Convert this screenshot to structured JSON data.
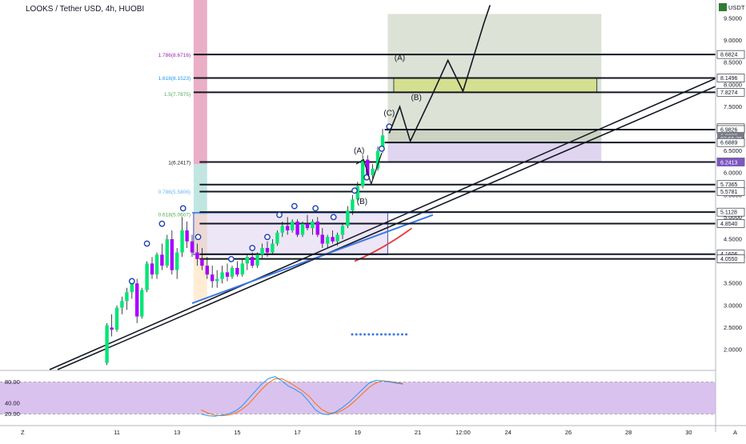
{
  "header": {
    "title": "LOOKS / Tether USD, 4h, HUOBI"
  },
  "price_axis": {
    "currency": "USDT",
    "ticks": [
      "9.5000",
      "9.0000",
      "8.5000",
      "8.0000",
      "7.5000",
      "7.0000",
      "6.5000",
      "6.0000",
      "5.5000",
      "5.0000",
      "4.5000",
      "4.0000",
      "3.5000",
      "3.0000",
      "2.5000",
      "2.0000"
    ],
    "tags": [
      {
        "label": "8.6824",
        "price": 8.6824,
        "bg": "#ffffff",
        "fg": "#131722"
      },
      {
        "label": "8.1496",
        "price": 8.1496,
        "bg": "#ffffff",
        "fg": "#131722"
      },
      {
        "label": "7.8274",
        "price": 7.8274,
        "bg": "#ffffff",
        "fg": "#131722"
      },
      {
        "label": "7.0220",
        "price": 7.022,
        "bg": "#ffffff",
        "fg": "#131722"
      },
      {
        "label": "6.9826",
        "price": 6.9826,
        "bg": "#ffffff",
        "fg": "#131722"
      },
      {
        "label": "6.8380",
        "price": 6.838,
        "bg": "#787b86",
        "fg": "#ffffff"
      },
      {
        "label": "02:55:35",
        "price": 6.77,
        "bg": "#787b86",
        "fg": "#ffffff"
      },
      {
        "label": "6.6889",
        "price": 6.6889,
        "bg": "#ffffff",
        "fg": "#131722"
      },
      {
        "label": "6.2492",
        "price": 6.2492,
        "bg": "#ffffff",
        "fg": "#131722"
      },
      {
        "label": "6.2413",
        "price": 6.2413,
        "bg": "#7e57c2",
        "fg": "#ffffff"
      },
      {
        "label": "5.7365",
        "price": 5.7365,
        "bg": "#ffffff",
        "fg": "#131722"
      },
      {
        "label": "5.5781",
        "price": 5.5781,
        "bg": "#ffffff",
        "fg": "#131722"
      },
      {
        "label": "5.1128",
        "price": 5.1128,
        "bg": "#ffffff",
        "fg": "#131722"
      },
      {
        "label": "4.8540",
        "price": 4.854,
        "bg": "#ffffff",
        "fg": "#131722"
      },
      {
        "label": "4.1606",
        "price": 4.1606,
        "bg": "#ffffff",
        "fg": "#131722"
      },
      {
        "label": "4.0550",
        "price": 4.055,
        "bg": "#ffffff",
        "fg": "#131722"
      }
    ]
  },
  "time_axis": {
    "ticks": [
      {
        "label": "11",
        "t": 11
      },
      {
        "label": "13",
        "t": 13
      },
      {
        "label": "15",
        "t": 15
      },
      {
        "label": "17",
        "t": 17
      },
      {
        "label": "19",
        "t": 19
      },
      {
        "label": "21",
        "t": 21
      },
      {
        "label": "12:00",
        "t": 22.5
      },
      {
        "label": "24",
        "t": 24
      },
      {
        "label": "26",
        "t": 26
      },
      {
        "label": "28",
        "t": 28
      },
      {
        "label": "30",
        "t": 30
      }
    ],
    "left_corner": "Z",
    "right_corner": "A"
  },
  "oscillator": {
    "ticks": [
      "80.00",
      "40.00",
      "20.00"
    ],
    "k_values": [
      20,
      17,
      16,
      18,
      20,
      25,
      34,
      48,
      62,
      76,
      86,
      90,
      82,
      72,
      66,
      58,
      44,
      28,
      20,
      19,
      24,
      32,
      42,
      54,
      66,
      78,
      83,
      82,
      80,
      78,
      76
    ],
    "d_values": [
      28,
      22,
      18,
      17,
      18,
      21,
      28,
      38,
      52,
      66,
      78,
      86,
      86,
      80,
      72,
      64,
      54,
      40,
      28,
      22,
      22,
      27,
      35,
      46,
      58,
      70,
      78,
      82,
      81,
      79,
      77
    ],
    "k_color": "#2196f3",
    "d_color": "#ff6d00",
    "band_color": "#d1b3ea"
  },
  "fib_labels": [
    {
      "label": "1.786(8.6716)",
      "price": 8.6716,
      "color": "#9c27b0"
    },
    {
      "label": "1.618(8.1523)",
      "price": 8.1523,
      "color": "#2196f3"
    },
    {
      "label": "1.5(7.7875)",
      "price": 7.7875,
      "color": "#4caf50"
    },
    {
      "label": "1(6.2417)",
      "price": 6.2417,
      "color": "#131722"
    },
    {
      "label": "0.786(5.5806)",
      "price": 5.5806,
      "color": "#64b5f6"
    },
    {
      "label": "0.618(5.0607)",
      "price": 5.0607,
      "color": "#4caf50"
    }
  ],
  "wave_labels": [
    {
      "label": "(A)",
      "t": 20.4,
      "p": 8.55
    },
    {
      "label": "(B)",
      "t": 20.95,
      "p": 7.65
    },
    {
      "label": "(C)",
      "t": 20.05,
      "p": 7.3
    },
    {
      "label": "(A)",
      "t": 19.05,
      "p": 6.45
    },
    {
      "label": "(B)",
      "t": 19.15,
      "p": 5.3
    }
  ],
  "chart_data": {
    "type": "candlestick",
    "title": "LOOKS / Tether USD, 4h, HUOBI",
    "ylabel": "USDT",
    "ylim": [
      1.6,
      9.8
    ],
    "xlim": [
      8.3,
      31.4
    ],
    "series": [
      {
        "name": "LOOKS / Tether USD",
        "ohlc": [
          [
            10.67,
            1.7,
            2.6,
            1.65,
            2.55
          ],
          [
            10.83,
            2.5,
            2.8,
            2.3,
            2.45
          ],
          [
            11.0,
            2.45,
            3.0,
            2.4,
            2.95
          ],
          [
            11.17,
            2.95,
            3.2,
            2.8,
            3.1
          ],
          [
            11.33,
            3.1,
            3.4,
            2.9,
            3.3
          ],
          [
            11.5,
            3.3,
            3.6,
            3.15,
            3.5
          ],
          [
            11.67,
            3.5,
            3.6,
            2.6,
            2.75
          ],
          [
            11.83,
            2.75,
            3.4,
            2.7,
            3.35
          ],
          [
            12.0,
            3.35,
            4.0,
            3.3,
            3.95
          ],
          [
            12.17,
            3.95,
            4.1,
            3.6,
            3.7
          ],
          [
            12.33,
            3.7,
            4.2,
            3.6,
            4.15
          ],
          [
            12.5,
            4.15,
            4.4,
            3.8,
            3.9
          ],
          [
            12.67,
            3.9,
            4.6,
            3.85,
            4.5
          ],
          [
            12.83,
            4.5,
            4.7,
            3.7,
            3.8
          ],
          [
            13.0,
            3.8,
            4.3,
            3.6,
            4.2
          ],
          [
            13.17,
            4.2,
            5.0,
            4.1,
            4.7
          ],
          [
            13.33,
            4.7,
            4.9,
            4.3,
            4.45
          ],
          [
            13.5,
            4.45,
            4.6,
            4.1,
            4.2
          ],
          [
            13.67,
            4.2,
            4.4,
            3.9,
            4.05
          ],
          [
            13.83,
            4.05,
            4.3,
            3.8,
            3.9
          ],
          [
            14.0,
            3.9,
            4.1,
            3.6,
            3.7
          ],
          [
            14.17,
            3.7,
            3.9,
            3.4,
            3.55
          ],
          [
            14.33,
            3.55,
            3.8,
            3.4,
            3.6
          ],
          [
            14.5,
            3.6,
            3.9,
            3.5,
            3.75
          ],
          [
            14.67,
            3.75,
            3.95,
            3.55,
            3.65
          ],
          [
            14.83,
            3.65,
            3.9,
            3.6,
            3.85
          ],
          [
            15.0,
            3.85,
            4.0,
            3.65,
            3.7
          ],
          [
            15.17,
            3.7,
            4.05,
            3.65,
            3.95
          ],
          [
            15.33,
            3.95,
            4.15,
            3.8,
            4.1
          ],
          [
            15.5,
            4.1,
            4.2,
            3.85,
            3.9
          ],
          [
            15.67,
            3.9,
            4.2,
            3.85,
            4.15
          ],
          [
            15.83,
            4.15,
            4.4,
            4.05,
            4.3
          ],
          [
            16.0,
            4.3,
            4.45,
            4.1,
            4.2
          ],
          [
            16.17,
            4.2,
            4.5,
            4.15,
            4.4
          ],
          [
            16.33,
            4.4,
            4.7,
            4.35,
            4.65
          ],
          [
            16.5,
            4.65,
            4.9,
            4.55,
            4.8
          ],
          [
            16.67,
            4.8,
            5.0,
            4.6,
            4.7
          ],
          [
            16.83,
            4.7,
            4.95,
            4.65,
            4.9
          ],
          [
            17.0,
            4.9,
            4.95,
            4.55,
            4.6
          ],
          [
            17.17,
            4.6,
            4.9,
            4.55,
            4.85
          ],
          [
            17.33,
            4.85,
            5.05,
            4.7,
            4.75
          ],
          [
            17.5,
            4.75,
            4.95,
            4.6,
            4.9
          ],
          [
            17.67,
            4.9,
            5.0,
            4.55,
            4.6
          ],
          [
            17.83,
            4.6,
            4.75,
            4.3,
            4.4
          ],
          [
            18.0,
            4.4,
            4.6,
            4.3,
            4.55
          ],
          [
            18.17,
            4.55,
            4.7,
            4.4,
            4.45
          ],
          [
            18.33,
            4.45,
            4.65,
            4.35,
            4.6
          ],
          [
            18.5,
            4.6,
            4.85,
            4.5,
            4.8
          ],
          [
            18.67,
            4.8,
            5.25,
            4.75,
            5.15
          ],
          [
            18.83,
            5.15,
            5.5,
            5.05,
            5.4
          ],
          [
            19.0,
            5.4,
            5.8,
            5.35,
            5.7
          ],
          [
            19.17,
            5.7,
            6.4,
            5.65,
            6.3
          ],
          [
            19.33,
            6.3,
            6.4,
            5.9,
            5.95
          ],
          [
            19.5,
            5.95,
            6.2,
            5.85,
            6.1
          ],
          [
            19.67,
            6.1,
            6.6,
            6.05,
            6.5
          ],
          [
            19.83,
            6.5,
            7.0,
            6.45,
            6.85
          ]
        ]
      }
    ],
    "horizontal_levels": [
      8.6824,
      8.1496,
      7.8274,
      6.9826,
      6.6889,
      6.2492,
      5.7365,
      5.5781,
      5.1128,
      4.854,
      4.1606,
      4.055
    ],
    "annotations": [
      "(A)",
      "(B)",
      "(C)",
      "(A)",
      "(B)"
    ],
    "grid": false,
    "legend": "none"
  }
}
